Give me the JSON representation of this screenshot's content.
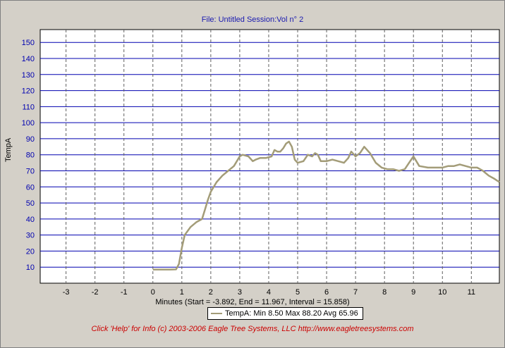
{
  "window": {
    "title": "File: Untitled   Session:Vol n° 2"
  },
  "footer": {
    "text": "Click 'Help' for Info  (c) 2003-2006 Eagle Tree Systems, LLC     http://www.eagletreesystems.com"
  },
  "colors": {
    "background": "#d4d0c8",
    "plot_background": "#ffffff",
    "horizontal_grid": "#0000b0",
    "vertical_grid": "#606060",
    "series_line": "#a39c78",
    "axis_text": "#0000b0",
    "footer_text": "#cc0000"
  },
  "chart_data": {
    "type": "line",
    "title": "File: Untitled   Session:Vol n° 2",
    "xlabel": "Minutes (Start = -3.892,  End = 11.967,  Interval =  15.858)",
    "ylabel": "TempA",
    "xlim": [
      -3.892,
      11.967
    ],
    "ylim": [
      0,
      158
    ],
    "x_ticks": [
      -3,
      -2,
      -1,
      0,
      1,
      2,
      3,
      4,
      5,
      6,
      7,
      8,
      9,
      10,
      11
    ],
    "y_ticks": [
      10,
      20,
      30,
      40,
      50,
      60,
      70,
      80,
      90,
      100,
      110,
      120,
      130,
      140,
      150
    ],
    "grid": true,
    "legend": {
      "placement": "bottom-center",
      "entries": [
        "TempA:  Min 8.50    Max 88.20    Avg 65.96"
      ]
    },
    "series": [
      {
        "name": "TempA",
        "x": [
          0.0,
          0.3,
          0.6,
          0.8,
          0.9,
          1.0,
          1.1,
          1.3,
          1.5,
          1.7,
          1.8,
          1.9,
          2.0,
          2.2,
          2.4,
          2.6,
          2.8,
          3.0,
          3.1,
          3.3,
          3.45,
          3.55,
          3.7,
          3.9,
          4.1,
          4.2,
          4.3,
          4.4,
          4.5,
          4.6,
          4.7,
          4.8,
          4.9,
          5.0,
          5.2,
          5.35,
          5.5,
          5.6,
          5.7,
          5.8,
          6.0,
          6.2,
          6.4,
          6.6,
          6.75,
          6.85,
          7.0,
          7.15,
          7.3,
          7.5,
          7.7,
          7.9,
          8.1,
          8.3,
          8.5,
          8.7,
          8.85,
          9.0,
          9.1,
          9.2,
          9.5,
          9.8,
          10.0,
          10.2,
          10.4,
          10.6,
          10.8,
          11.0,
          11.2,
          11.4,
          11.6,
          11.8,
          11.967
        ],
        "values": [
          8.5,
          8.5,
          8.5,
          8.6,
          12,
          22,
          30,
          35,
          38,
          40,
          46,
          52,
          57,
          63,
          67,
          70,
          73,
          79,
          80,
          79,
          76,
          77,
          78,
          78,
          79,
          83,
          82,
          82,
          84,
          87,
          88.2,
          85,
          77,
          75,
          76,
          80,
          79,
          81,
          80,
          76,
          76,
          77,
          76,
          75,
          78,
          82,
          79,
          81,
          85,
          81,
          75,
          72,
          71,
          71,
          70,
          71,
          75,
          79,
          76,
          73,
          72,
          72,
          72,
          73,
          73,
          74,
          73,
          72,
          72,
          70,
          67,
          65,
          63
        ]
      }
    ]
  }
}
